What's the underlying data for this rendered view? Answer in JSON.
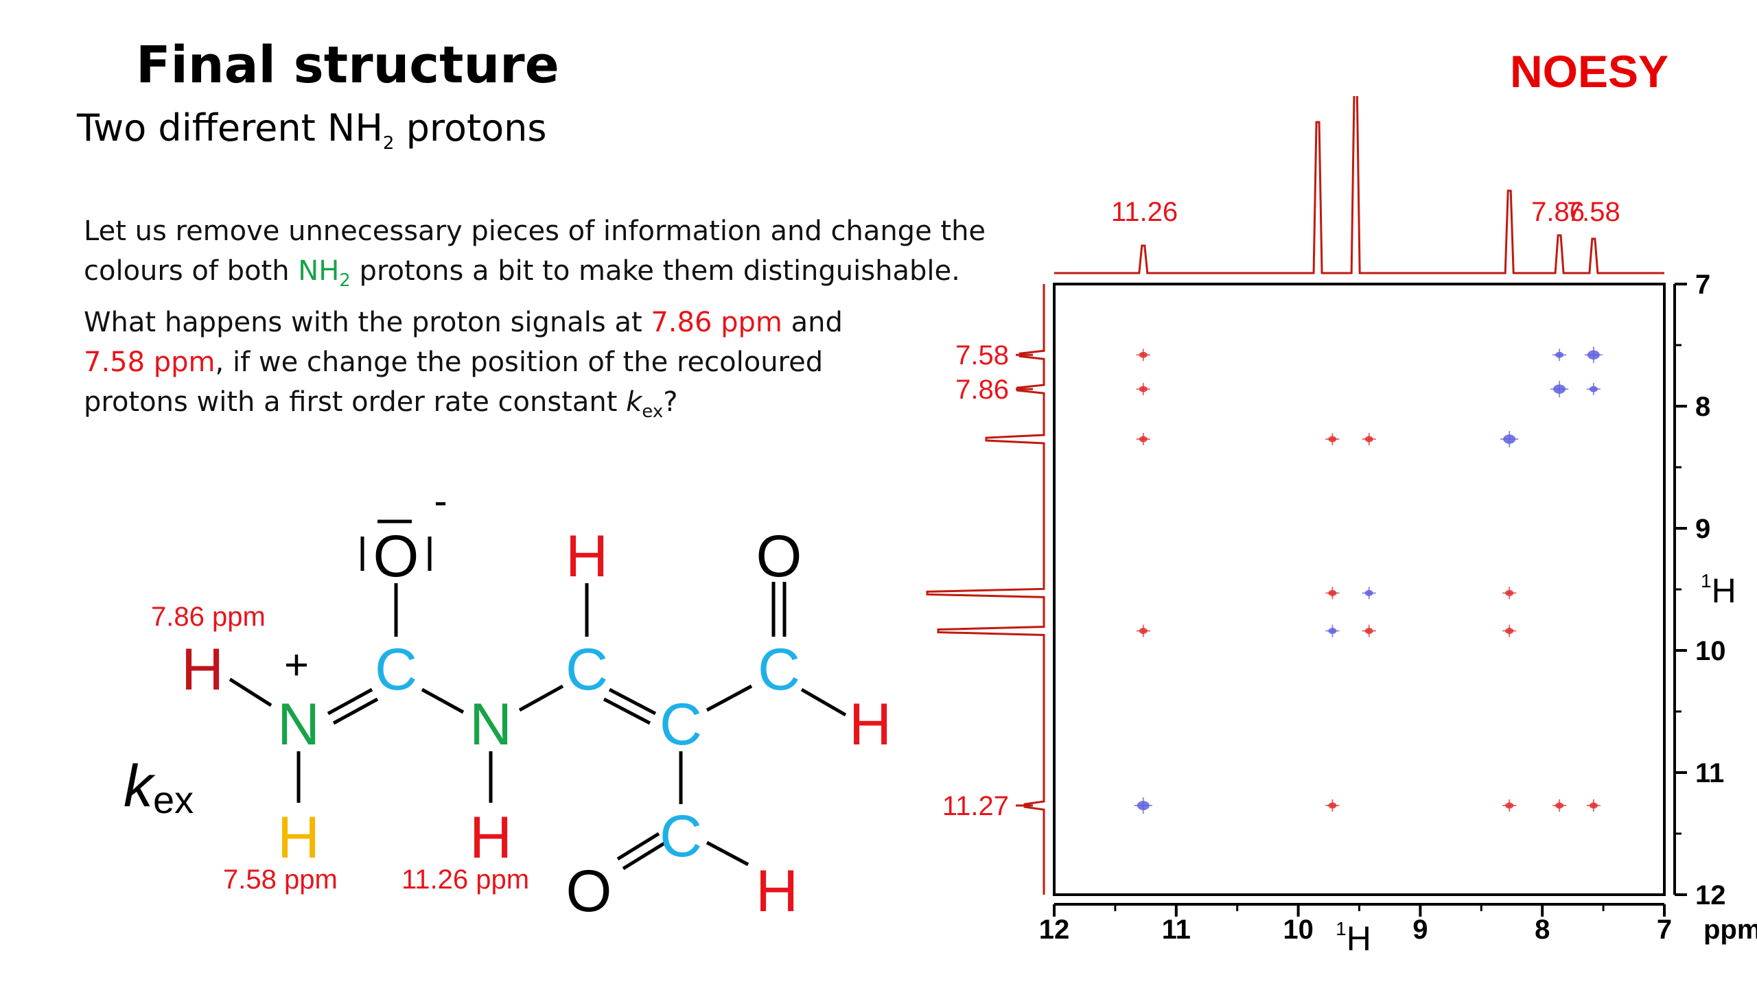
{
  "slide": {
    "title": "Final structure",
    "subtitle_pre": "Two different NH",
    "subtitle_sub": "2",
    "subtitle_post": " protons",
    "badge": "NOESY"
  },
  "paragraph1": {
    "line1": "Let us remove unnecessary pieces of information and change the",
    "line2_pre": "colours of both ",
    "line2_nh": "NH",
    "line2_sub": "2",
    "line2_post": " protons a bit to make them distinguishable."
  },
  "paragraph2": {
    "line1_pre": "What happens with the proton signals at ",
    "line1_red": "7.86 ppm",
    "line1_post": " and",
    "line2_red": "7.58 ppm",
    "line2_post": ", if we change the position of the recoloured",
    "line3_pre": "protons with a first order rate constant ",
    "line3_k": "k",
    "line3_sub": "ex",
    "line3_post": "?"
  },
  "molecule": {
    "kex_k": "k",
    "kex_sub": "ex",
    "label_h_red": "7.86 ppm",
    "label_h_yellow": "7.58 ppm",
    "label_h_nh": "11.26 ppm",
    "charge_plus": "+",
    "charge_minus": "-",
    "atoms": {
      "H_red": "H",
      "N_plus": "N",
      "H_yellow": "H",
      "C1": "C",
      "O_minus": "O",
      "N2": "N",
      "H_nh": "H",
      "C2": "C",
      "H_top": "H",
      "C3": "C",
      "C4": "C",
      "O_top": "O",
      "H_right": "H",
      "C5": "C",
      "O_bottom": "O",
      "H_bottom": "H"
    },
    "colors": {
      "carbon": "#1fb0e8",
      "nitrogen": "#18a34a",
      "hydrogen_red": "#e8141b",
      "hydrogen_dark": "#c0141b",
      "hydrogen_yellow": "#f5b800",
      "oxygen": "#000000"
    }
  },
  "chart_data": {
    "type": "scatter",
    "title": "NOESY",
    "xlabel_sup": "1",
    "xlabel": "H",
    "ylabel_sup": "1",
    "ylabel": "H",
    "x_unit": "ppm",
    "xlim": [
      12,
      7
    ],
    "ylim": [
      7,
      12
    ],
    "x_ticks": [
      "12",
      "11",
      "10",
      "9",
      "8",
      "7"
    ],
    "y_ticks": [
      "7",
      "8",
      "9",
      "10",
      "11",
      "12"
    ],
    "top_peak_labels": [
      "11.26",
      "7.86",
      "7.58"
    ],
    "left_peak_labels": [
      "7.58",
      "7.86",
      "11.27"
    ],
    "series": [
      {
        "name": "positive",
        "color": "#e03030",
        "points": [
          [
            11.27,
            7.58
          ],
          [
            11.27,
            7.86
          ],
          [
            11.27,
            8.27
          ],
          [
            9.72,
            8.27
          ],
          [
            9.42,
            8.27
          ],
          [
            9.72,
            9.53
          ],
          [
            8.27,
            9.53
          ],
          [
            11.27,
            9.84
          ],
          [
            9.42,
            9.84
          ],
          [
            8.27,
            9.84
          ],
          [
            9.72,
            11.27
          ],
          [
            8.27,
            11.27
          ],
          [
            7.86,
            11.27
          ],
          [
            7.58,
            11.27
          ]
        ]
      },
      {
        "name": "negative",
        "color": "#6060e0",
        "points": [
          [
            7.86,
            7.58
          ],
          [
            7.58,
            7.58
          ],
          [
            7.86,
            7.86
          ],
          [
            7.58,
            7.86
          ],
          [
            8.27,
            8.27
          ],
          [
            9.42,
            9.53
          ],
          [
            9.72,
            9.84
          ],
          [
            11.27,
            11.27
          ]
        ]
      }
    ],
    "projection_peaks": [
      11.27,
      9.84,
      9.53,
      8.27,
      7.86,
      7.58
    ]
  }
}
